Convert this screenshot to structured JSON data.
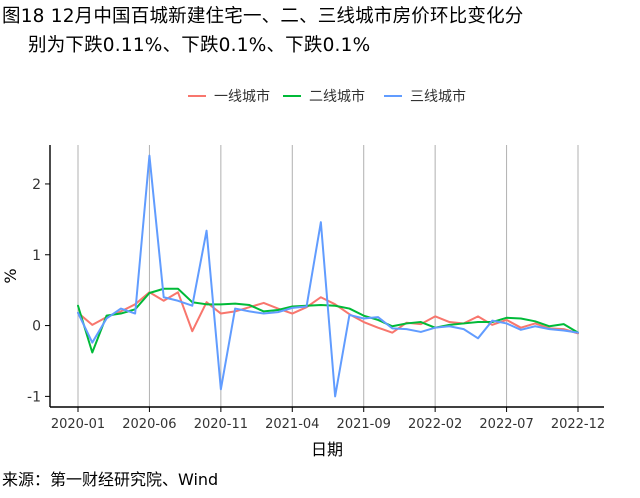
{
  "title": {
    "line1": "图18 12月中国百城新建住宅一、二、三线城市房价环比变化分",
    "line2": "别为下跌0.11%、下跌0.1%、下跌0.1%"
  },
  "source": "来源：第一财经研究院、Wind",
  "chart_data": {
    "type": "line",
    "xlabel": "日期",
    "ylabel": "%",
    "ylim": [
      -1.15,
      2.55
    ],
    "yticks": [
      -1,
      0,
      1,
      2
    ],
    "x": [
      "2020-01",
      "2020-02",
      "2020-03",
      "2020-04",
      "2020-05",
      "2020-06",
      "2020-07",
      "2020-08",
      "2020-09",
      "2020-10",
      "2020-11",
      "2020-12",
      "2021-01",
      "2021-02",
      "2021-03",
      "2021-04",
      "2021-05",
      "2021-06",
      "2021-07",
      "2021-08",
      "2021-09",
      "2021-10",
      "2021-11",
      "2021-12",
      "2022-01",
      "2022-02",
      "2022-03",
      "2022-04",
      "2022-05",
      "2022-06",
      "2022-07",
      "2022-08",
      "2022-09",
      "2022-10",
      "2022-11",
      "2022-12"
    ],
    "xticks": [
      "2020-01",
      "2020-06",
      "2020-11",
      "2021-04",
      "2021-09",
      "2022-02",
      "2022-07",
      "2022-12"
    ],
    "grid": "vertical at x ticks",
    "legend_position": "top",
    "series": [
      {
        "name": "一线城市",
        "color": "#F8766D",
        "values": [
          0.18,
          0.01,
          0.12,
          0.2,
          0.3,
          0.47,
          0.35,
          0.47,
          -0.08,
          0.33,
          0.17,
          0.2,
          0.26,
          0.32,
          0.24,
          0.17,
          0.26,
          0.4,
          0.3,
          0.16,
          0.05,
          -0.03,
          -0.1,
          0.04,
          0.02,
          0.13,
          0.05,
          0.03,
          0.13,
          0.01,
          0.08,
          -0.03,
          0.03,
          -0.04,
          -0.05,
          -0.11
        ]
      },
      {
        "name": "二线城市",
        "color": "#00BA38",
        "values": [
          0.28,
          -0.38,
          0.14,
          0.17,
          0.23,
          0.46,
          0.52,
          0.52,
          0.33,
          0.3,
          0.3,
          0.31,
          0.29,
          0.2,
          0.22,
          0.27,
          0.28,
          0.29,
          0.28,
          0.24,
          0.14,
          0.08,
          -0.01,
          0.03,
          0.05,
          -0.03,
          0.01,
          0.03,
          0.05,
          0.05,
          0.11,
          0.1,
          0.06,
          -0.01,
          0.02,
          -0.1
        ]
      },
      {
        "name": "三线城市",
        "color": "#619CFF",
        "values": [
          0.18,
          -0.24,
          0.1,
          0.24,
          0.17,
          2.4,
          0.4,
          0.35,
          0.28,
          1.34,
          -0.9,
          0.24,
          0.2,
          0.17,
          0.19,
          0.25,
          0.27,
          1.46,
          -1.0,
          0.15,
          0.1,
          0.12,
          -0.04,
          -0.05,
          -0.09,
          -0.03,
          -0.01,
          -0.05,
          -0.18,
          0.07,
          0.03,
          -0.06,
          -0.01,
          -0.05,
          -0.07,
          -0.1
        ]
      }
    ]
  }
}
